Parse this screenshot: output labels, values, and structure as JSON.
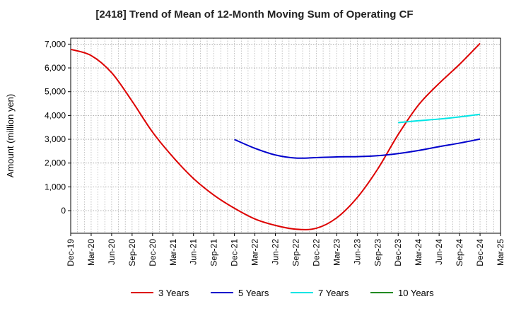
{
  "chart_data": {
    "type": "line",
    "title": "[2418]  Trend of Mean of 12-Month Moving Sum of Operating CF",
    "xlabel": "",
    "ylabel": "Amount (million yen)",
    "ylim": [
      -950,
      7250
    ],
    "yticks": [
      0,
      1000,
      2000,
      3000,
      4000,
      5000,
      6000,
      7000
    ],
    "ytick_labels": [
      "0",
      "1,000",
      "2,000",
      "3,000",
      "4,000",
      "5,000",
      "6,000",
      "7,000"
    ],
    "xtick_labels": [
      "Dec-19",
      "Mar-20",
      "Jun-20",
      "Sep-20",
      "Dec-20",
      "Mar-21",
      "Jun-21",
      "Sep-21",
      "Dec-21",
      "Mar-22",
      "Jun-22",
      "Sep-22",
      "Dec-22",
      "Mar-23",
      "Jun-23",
      "Sep-23",
      "Dec-23",
      "Mar-24",
      "Jun-24",
      "Sep-24",
      "Dec-24",
      "Mar-25"
    ],
    "grid": true,
    "legend_position": "bottom",
    "series": [
      {
        "name": "3 Years",
        "color": "#dd0000",
        "x": [
          0,
          1,
          2,
          3,
          4,
          5,
          6,
          7,
          8,
          9,
          10,
          11,
          12,
          13,
          14,
          15,
          16,
          17,
          18,
          19,
          20
        ],
        "values": [
          6780,
          6520,
          5800,
          4600,
          3300,
          2250,
          1350,
          650,
          100,
          -350,
          -620,
          -780,
          -740,
          -300,
          550,
          1750,
          3200,
          4450,
          5350,
          6150,
          7030
        ]
      },
      {
        "name": "5 Years",
        "color": "#0000cc",
        "x": [
          8,
          9,
          10,
          11,
          12,
          13,
          14,
          15,
          16,
          17,
          18,
          19,
          20
        ],
        "values": [
          2990,
          2620,
          2340,
          2210,
          2230,
          2260,
          2270,
          2310,
          2400,
          2530,
          2690,
          2840,
          3010
        ]
      },
      {
        "name": "7 Years",
        "color": "#00e5e5",
        "x": [
          16,
          17,
          18,
          19,
          20
        ],
        "values": [
          3700,
          3780,
          3850,
          3940,
          4050
        ]
      },
      {
        "name": "10 Years",
        "color": "#228b22",
        "x": [],
        "values": []
      }
    ]
  }
}
